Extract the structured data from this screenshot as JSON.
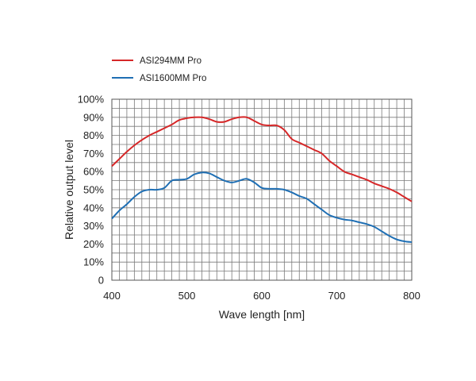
{
  "chart_data": {
    "type": "line",
    "title": "",
    "xlabel": "Wave length [nm]",
    "ylabel": "Relative output level",
    "xlim": [
      400,
      800
    ],
    "ylim": [
      0,
      100
    ],
    "x_ticks": [
      400,
      500,
      600,
      700,
      800
    ],
    "x_tick_labels": [
      "400",
      "500",
      "600",
      "700",
      "800"
    ],
    "y_ticks": [
      0,
      10,
      20,
      30,
      40,
      50,
      60,
      70,
      80,
      90,
      100
    ],
    "y_tick_labels": [
      "0",
      "10%",
      "20%",
      "30%",
      "40%",
      "50%",
      "60%",
      "70%",
      "80%",
      "90%",
      "100%"
    ],
    "grid": true,
    "grid_x_step": 10,
    "grid_y_step": 5,
    "legend_position": "top-left",
    "series": [
      {
        "name": "ASI294MM Pro",
        "color": "#d62728",
        "x": [
          400,
          410,
          420,
          430,
          440,
          450,
          460,
          470,
          480,
          490,
          500,
          510,
          520,
          530,
          540,
          550,
          560,
          570,
          580,
          590,
          600,
          610,
          620,
          630,
          640,
          650,
          660,
          670,
          680,
          690,
          700,
          710,
          720,
          730,
          740,
          750,
          760,
          770,
          780,
          790,
          800
        ],
        "values": [
          63,
          67,
          71,
          74.5,
          77.5,
          80,
          82,
          84,
          86,
          88.5,
          89.5,
          90,
          90,
          89,
          87.5,
          87.5,
          89,
          90,
          90,
          88,
          86,
          85.5,
          85.5,
          83,
          78,
          76,
          74,
          72,
          70,
          66,
          63,
          60,
          58.5,
          57,
          55.5,
          53.5,
          52,
          50.5,
          48.5,
          46,
          43.5
        ]
      },
      {
        "name": "ASI1600MM Pro",
        "color": "#1f6fb4",
        "x": [
          400,
          410,
          420,
          430,
          440,
          450,
          460,
          470,
          480,
          490,
          500,
          510,
          520,
          530,
          540,
          550,
          560,
          570,
          580,
          590,
          600,
          610,
          620,
          630,
          640,
          650,
          660,
          670,
          680,
          690,
          700,
          710,
          720,
          730,
          740,
          750,
          760,
          770,
          780,
          790,
          800
        ],
        "values": [
          34,
          38.5,
          42,
          46,
          49,
          50,
          50,
          51,
          55,
          55.5,
          56,
          58.5,
          59.5,
          59,
          57,
          55,
          54,
          55,
          56,
          54,
          51,
          50.5,
          50.5,
          50,
          48.5,
          46.5,
          45,
          42,
          39,
          36,
          34.5,
          33.5,
          33,
          32,
          31,
          29.5,
          27,
          24.5,
          22.5,
          21.5,
          21
        ]
      }
    ]
  }
}
